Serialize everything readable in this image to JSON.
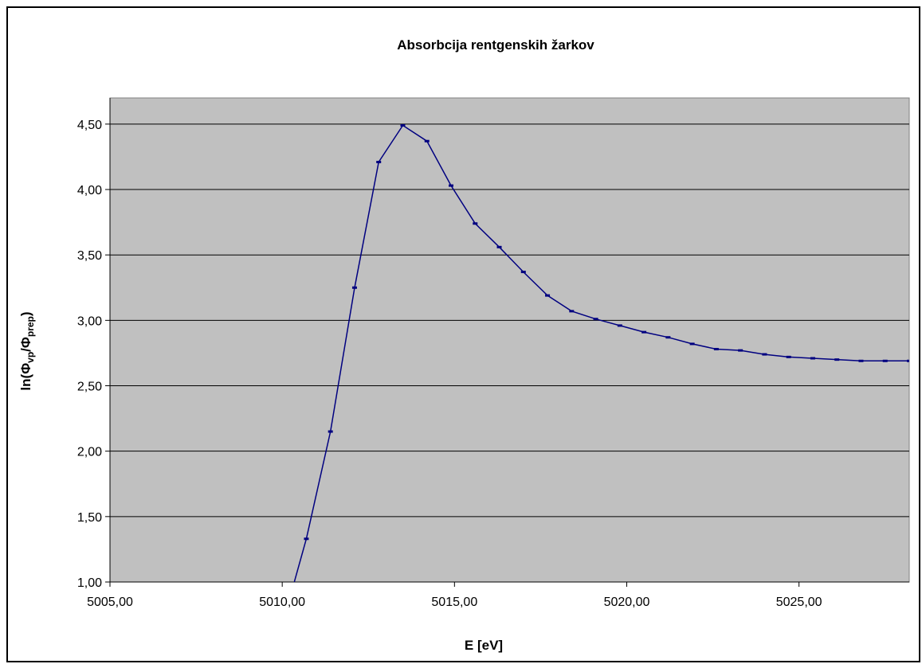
{
  "chart_data": {
    "type": "line",
    "title": "Absorbcija rentgenskih žarkov",
    "xlabel": "E [eV]",
    "ylabel": {
      "base": "ln(Φ",
      "sub1": "vp",
      "mid": "/Φ",
      "sub2": "prep",
      "end": ")"
    },
    "xlim": [
      5005,
      5028.2
    ],
    "ylim": [
      1.0,
      4.7
    ],
    "x_ticks": [
      {
        "value": 5005,
        "label": "5005,00"
      },
      {
        "value": 5010,
        "label": "5010,00"
      },
      {
        "value": 5015,
        "label": "5015,00"
      },
      {
        "value": 5020,
        "label": "5020,00"
      },
      {
        "value": 5025,
        "label": "5025,00"
      }
    ],
    "y_ticks": [
      {
        "value": 1.0,
        "label": "1,00"
      },
      {
        "value": 1.5,
        "label": "1,50"
      },
      {
        "value": 2.0,
        "label": "2,00"
      },
      {
        "value": 2.5,
        "label": "2,50"
      },
      {
        "value": 3.0,
        "label": "3,00"
      },
      {
        "value": 3.5,
        "label": "3,50"
      },
      {
        "value": 4.0,
        "label": "4,00"
      },
      {
        "value": 4.5,
        "label": "4,50"
      }
    ],
    "grid": "horizontal",
    "legend": "none",
    "colors": {
      "plot_bg": "#c0c0c0",
      "line": "#000080",
      "grid": "#000000"
    },
    "series": [
      {
        "points": [
          {
            "x": 5010.0,
            "y": 0.67
          },
          {
            "x": 5010.7,
            "y": 1.33
          },
          {
            "x": 5011.4,
            "y": 2.15
          },
          {
            "x": 5012.1,
            "y": 3.25
          },
          {
            "x": 5012.8,
            "y": 4.21
          },
          {
            "x": 5013.5,
            "y": 4.49
          },
          {
            "x": 5014.2,
            "y": 4.37
          },
          {
            "x": 5014.9,
            "y": 4.03
          },
          {
            "x": 5015.6,
            "y": 3.74
          },
          {
            "x": 5016.3,
            "y": 3.56
          },
          {
            "x": 5017.0,
            "y": 3.37
          },
          {
            "x": 5017.7,
            "y": 3.19
          },
          {
            "x": 5018.4,
            "y": 3.07
          },
          {
            "x": 5019.1,
            "y": 3.01
          },
          {
            "x": 5019.8,
            "y": 2.96
          },
          {
            "x": 5020.5,
            "y": 2.91
          },
          {
            "x": 5021.2,
            "y": 2.87
          },
          {
            "x": 5021.9,
            "y": 2.82
          },
          {
            "x": 5022.6,
            "y": 2.78
          },
          {
            "x": 5023.3,
            "y": 2.77
          },
          {
            "x": 5024.0,
            "y": 2.74
          },
          {
            "x": 5024.7,
            "y": 2.72
          },
          {
            "x": 5025.4,
            "y": 2.71
          },
          {
            "x": 5026.1,
            "y": 2.7
          },
          {
            "x": 5026.8,
            "y": 2.69
          },
          {
            "x": 5027.5,
            "y": 2.69
          },
          {
            "x": 5028.2,
            "y": 2.69
          }
        ]
      }
    ]
  }
}
